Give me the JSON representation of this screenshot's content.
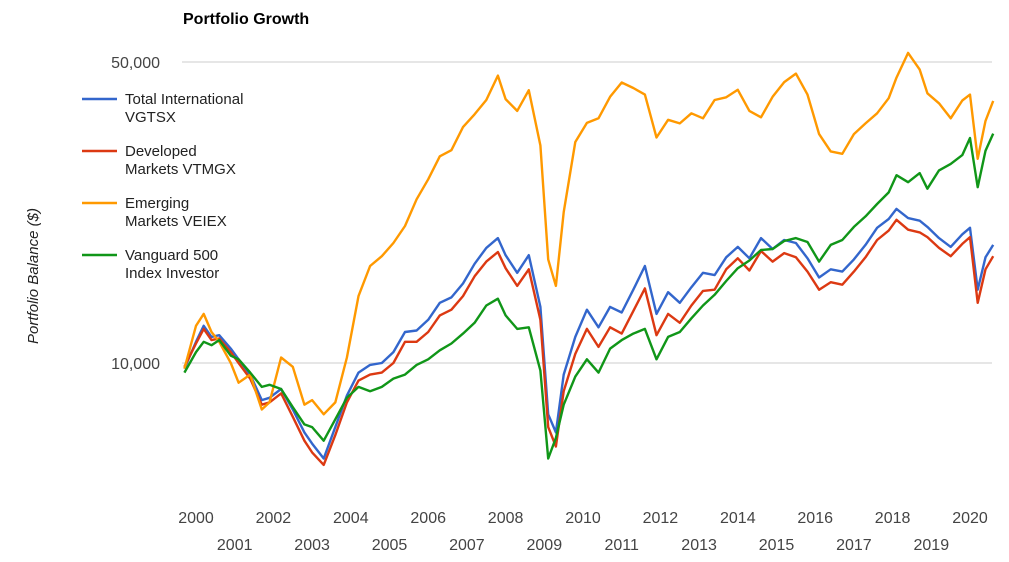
{
  "chart_data": {
    "type": "line",
    "title": "Portfolio Growth",
    "xlabel": "",
    "ylabel": "Portfolio Balance ($)",
    "yscale": "log",
    "ylim": [
      4500,
      55000
    ],
    "xlim": [
      1999.7,
      2020.6
    ],
    "y_ticks": [
      {
        "value": 10000,
        "label": "10,000"
      },
      {
        "value": 50000,
        "label": "50,000"
      }
    ],
    "x_ticks": [
      {
        "value": 2000,
        "label": "2000",
        "row": 1
      },
      {
        "value": 2001,
        "label": "2001",
        "row": 2
      },
      {
        "value": 2002,
        "label": "2002",
        "row": 1
      },
      {
        "value": 2003,
        "label": "2003",
        "row": 2
      },
      {
        "value": 2004,
        "label": "2004",
        "row": 1
      },
      {
        "value": 2005,
        "label": "2005",
        "row": 2
      },
      {
        "value": 2006,
        "label": "2006",
        "row": 1
      },
      {
        "value": 2007,
        "label": "2007",
        "row": 2
      },
      {
        "value": 2008,
        "label": "2008",
        "row": 1
      },
      {
        "value": 2009,
        "label": "2009",
        "row": 2
      },
      {
        "value": 2010,
        "label": "2010",
        "row": 1
      },
      {
        "value": 2011,
        "label": "2011",
        "row": 2
      },
      {
        "value": 2012,
        "label": "2012",
        "row": 1
      },
      {
        "value": 2013,
        "label": "2013",
        "row": 2
      },
      {
        "value": 2014,
        "label": "2014",
        "row": 1
      },
      {
        "value": 2015,
        "label": "2015",
        "row": 2
      },
      {
        "value": 2016,
        "label": "2016",
        "row": 1
      },
      {
        "value": 2017,
        "label": "2017",
        "row": 2
      },
      {
        "value": 2018,
        "label": "2018",
        "row": 1
      },
      {
        "value": 2019,
        "label": "2019",
        "row": 2
      },
      {
        "value": 2020,
        "label": "2020",
        "row": 1
      }
    ],
    "grid": true,
    "legend_position": "left",
    "series": [
      {
        "name": "Total International VGTSX",
        "legend_lines": [
          "Total International",
          "VGTSX"
        ],
        "color": "#3366cc",
        "x": [
          1999.7,
          2000.0,
          2000.2,
          2000.4,
          2000.6,
          2000.9,
          2001.1,
          2001.4,
          2001.7,
          2001.9,
          2002.2,
          2002.5,
          2002.8,
          2003.0,
          2003.3,
          2003.6,
          2003.9,
          2004.2,
          2004.5,
          2004.8,
          2005.1,
          2005.4,
          2005.7,
          2006.0,
          2006.3,
          2006.6,
          2006.9,
          2007.2,
          2007.5,
          2007.8,
          2008.0,
          2008.3,
          2008.6,
          2008.9,
          2009.1,
          2009.3,
          2009.5,
          2009.8,
          2010.1,
          2010.4,
          2010.7,
          2011.0,
          2011.3,
          2011.6,
          2011.9,
          2012.2,
          2012.5,
          2012.8,
          2013.1,
          2013.4,
          2013.7,
          2014.0,
          2014.3,
          2014.6,
          2014.9,
          2015.2,
          2015.5,
          2015.8,
          2016.1,
          2016.4,
          2016.7,
          2017.0,
          2017.3,
          2017.6,
          2017.9,
          2018.1,
          2018.4,
          2018.7,
          2018.9,
          2019.2,
          2019.5,
          2019.8,
          2020.0,
          2020.2,
          2020.4,
          2020.6
        ],
        "values": [
          9700,
          11200,
          12200,
          11500,
          11600,
          10800,
          10200,
          9400,
          8200,
          8300,
          8700,
          7800,
          6900,
          6500,
          6000,
          7100,
          8400,
          9500,
          9900,
          10000,
          10600,
          11800,
          11900,
          12600,
          13800,
          14200,
          15300,
          17000,
          18500,
          19500,
          17800,
          16200,
          17800,
          13500,
          7600,
          6900,
          9400,
          11500,
          13300,
          12100,
          13500,
          13100,
          14800,
          16800,
          13000,
          14600,
          13800,
          15000,
          16200,
          16000,
          17600,
          18600,
          17500,
          19500,
          18400,
          19300,
          19000,
          17500,
          15800,
          16500,
          16300,
          17400,
          18800,
          20600,
          21600,
          22800,
          21700,
          21400,
          20700,
          19500,
          18600,
          19900,
          20600,
          14800,
          17600,
          18800
        ]
      },
      {
        "name": "Developed Markets VTMGX",
        "legend_lines": [
          "Developed",
          "Markets VTMGX"
        ],
        "color": "#dc3912",
        "x": [
          1999.7,
          2000.0,
          2000.2,
          2000.4,
          2000.6,
          2000.9,
          2001.1,
          2001.4,
          2001.7,
          2001.9,
          2002.2,
          2002.5,
          2002.8,
          2003.0,
          2003.3,
          2003.6,
          2003.9,
          2004.2,
          2004.5,
          2004.8,
          2005.1,
          2005.4,
          2005.7,
          2006.0,
          2006.3,
          2006.6,
          2006.9,
          2007.2,
          2007.5,
          2007.8,
          2008.0,
          2008.3,
          2008.6,
          2008.9,
          2009.1,
          2009.3,
          2009.5,
          2009.8,
          2010.1,
          2010.4,
          2010.7,
          2011.0,
          2011.3,
          2011.6,
          2011.9,
          2012.2,
          2012.5,
          2012.8,
          2013.1,
          2013.4,
          2013.7,
          2014.0,
          2014.3,
          2014.6,
          2014.9,
          2015.2,
          2015.5,
          2015.8,
          2016.1,
          2016.4,
          2016.7,
          2017.0,
          2017.3,
          2017.6,
          2017.9,
          2018.1,
          2018.4,
          2018.7,
          2018.9,
          2019.2,
          2019.5,
          2019.8,
          2020.0,
          2020.2,
          2020.4,
          2020.6
        ],
        "values": [
          9800,
          11100,
          12000,
          11300,
          11400,
          10600,
          10000,
          9200,
          8000,
          8100,
          8500,
          7500,
          6600,
          6200,
          5800,
          6800,
          8100,
          9100,
          9400,
          9500,
          10000,
          11200,
          11200,
          11800,
          12900,
          13300,
          14300,
          15900,
          17200,
          18100,
          16600,
          15100,
          16500,
          12600,
          7100,
          6400,
          8600,
          10500,
          12000,
          10900,
          12100,
          11700,
          13200,
          14900,
          11600,
          13000,
          12400,
          13600,
          14700,
          14800,
          16500,
          17500,
          16400,
          18200,
          17200,
          18000,
          17600,
          16300,
          14800,
          15400,
          15200,
          16300,
          17600,
          19300,
          20300,
          21500,
          20400,
          20100,
          19600,
          18500,
          17700,
          18900,
          19600,
          13800,
          16500,
          17700
        ]
      },
      {
        "name": "Emerging Markets VEIEX",
        "legend_lines": [
          "Emerging",
          "Markets VEIEX"
        ],
        "color": "#ff9900",
        "x": [
          1999.7,
          2000.0,
          2000.2,
          2000.4,
          2000.6,
          2000.9,
          2001.1,
          2001.4,
          2001.7,
          2001.9,
          2002.2,
          2002.5,
          2002.8,
          2003.0,
          2003.3,
          2003.6,
          2003.9,
          2004.2,
          2004.5,
          2004.8,
          2005.1,
          2005.4,
          2005.7,
          2006.0,
          2006.3,
          2006.6,
          2006.9,
          2007.2,
          2007.5,
          2007.8,
          2008.0,
          2008.3,
          2008.6,
          2008.9,
          2009.1,
          2009.3,
          2009.5,
          2009.8,
          2010.1,
          2010.4,
          2010.7,
          2011.0,
          2011.3,
          2011.6,
          2011.9,
          2012.2,
          2012.5,
          2012.8,
          2013.1,
          2013.4,
          2013.7,
          2014.0,
          2014.3,
          2014.6,
          2014.9,
          2015.2,
          2015.5,
          2015.8,
          2016.1,
          2016.4,
          2016.7,
          2017.0,
          2017.3,
          2017.6,
          2017.9,
          2018.1,
          2018.4,
          2018.7,
          2018.9,
          2019.2,
          2019.5,
          2019.8,
          2020.0,
          2020.2,
          2020.4,
          2020.6
        ],
        "values": [
          9700,
          12200,
          13000,
          11800,
          11200,
          10000,
          9000,
          9400,
          7800,
          8100,
          10300,
          9800,
          8000,
          8200,
          7600,
          8100,
          10300,
          14300,
          16800,
          17700,
          19000,
          20800,
          24000,
          26700,
          30200,
          31200,
          35300,
          37800,
          40800,
          46500,
          41000,
          38500,
          43000,
          32000,
          17400,
          15100,
          22400,
          32600,
          36100,
          37000,
          41500,
          44800,
          43500,
          42000,
          33400,
          36700,
          36000,
          38000,
          37000,
          40800,
          41400,
          43100,
          38500,
          37200,
          41500,
          44900,
          47000,
          42000,
          34000,
          31000,
          30600,
          34000,
          36000,
          38000,
          41200,
          46000,
          52500,
          48000,
          42300,
          40100,
          37000,
          40700,
          42000,
          29800,
          36500,
          40600
        ]
      },
      {
        "name": "Vanguard 500 Index Investor",
        "legend_lines": [
          "Vanguard 500",
          "Index Investor"
        ],
        "color": "#109618",
        "x": [
          1999.7,
          2000.0,
          2000.2,
          2000.4,
          2000.6,
          2000.9,
          2001.1,
          2001.4,
          2001.7,
          2001.9,
          2002.2,
          2002.5,
          2002.8,
          2003.0,
          2003.3,
          2003.6,
          2003.9,
          2004.2,
          2004.5,
          2004.8,
          2005.1,
          2005.4,
          2005.7,
          2006.0,
          2006.3,
          2006.6,
          2006.9,
          2007.2,
          2007.5,
          2007.8,
          2008.0,
          2008.3,
          2008.6,
          2008.9,
          2009.1,
          2009.3,
          2009.5,
          2009.8,
          2010.1,
          2010.4,
          2010.7,
          2011.0,
          2011.3,
          2011.6,
          2011.9,
          2012.2,
          2012.5,
          2012.8,
          2013.1,
          2013.4,
          2013.7,
          2014.0,
          2014.3,
          2014.6,
          2014.9,
          2015.2,
          2015.5,
          2015.8,
          2016.1,
          2016.4,
          2016.7,
          2017.0,
          2017.3,
          2017.6,
          2017.9,
          2018.1,
          2018.4,
          2018.7,
          2018.9,
          2019.2,
          2019.5,
          2019.8,
          2020.0,
          2020.2,
          2020.4,
          2020.6
        ],
        "values": [
          9500,
          10600,
          11200,
          11000,
          11300,
          10400,
          10200,
          9500,
          8800,
          8900,
          8700,
          7900,
          7200,
          7100,
          6600,
          7400,
          8300,
          8800,
          8600,
          8800,
          9200,
          9400,
          9900,
          10200,
          10700,
          11100,
          11700,
          12400,
          13600,
          14100,
          12900,
          12000,
          12100,
          9600,
          6000,
          6700,
          8000,
          9300,
          10200,
          9500,
          10800,
          11300,
          11700,
          12000,
          10200,
          11500,
          11800,
          12700,
          13600,
          14400,
          15500,
          16600,
          17300,
          18300,
          18400,
          19200,
          19500,
          19100,
          17200,
          18800,
          19300,
          20700,
          21900,
          23400,
          24900,
          27300,
          26300,
          27600,
          25400,
          28000,
          29000,
          30400,
          33300,
          25600,
          31100,
          34100
        ]
      }
    ]
  }
}
